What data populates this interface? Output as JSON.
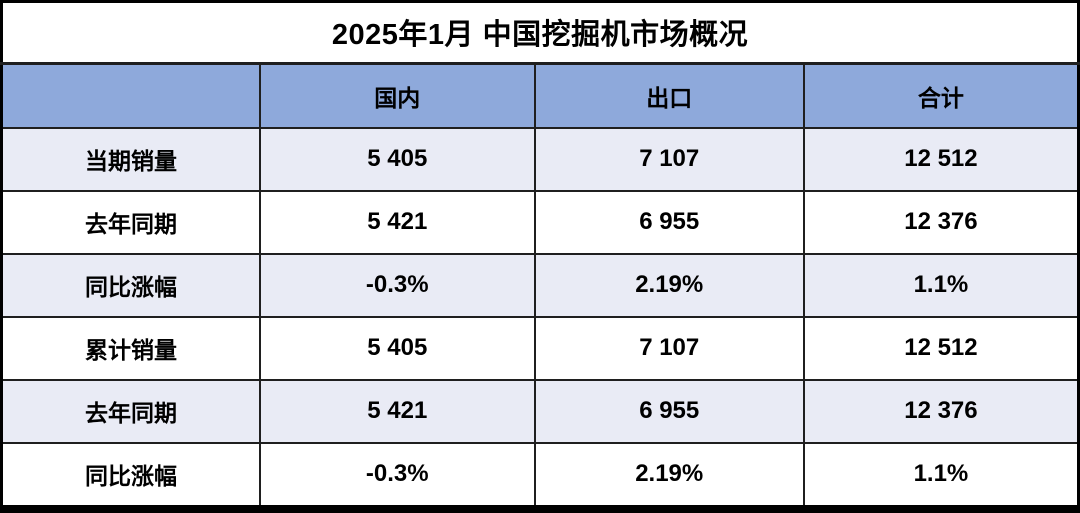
{
  "title": "2025年1月 中国挖掘机市场概况",
  "colors": {
    "header_bg": "#8EA9DB",
    "band_bg": "#E9EBF5",
    "plain_bg": "#FFFFFF",
    "border": "#1F1F1F",
    "text": "#000000"
  },
  "table": {
    "columns": [
      "",
      "国内",
      "出口",
      "合计"
    ],
    "rows": [
      {
        "label": "当期销量",
        "values": [
          "5 405",
          "7 107",
          "12 512"
        ]
      },
      {
        "label": "去年同期",
        "values": [
          "5 421",
          "6 955",
          "12 376"
        ]
      },
      {
        "label": "同比涨幅",
        "values": [
          "-0.3%",
          "2.19%",
          "1.1%"
        ]
      },
      {
        "label": "累计销量",
        "values": [
          "5 405",
          "7 107",
          "12 512"
        ]
      },
      {
        "label": "去年同期",
        "values": [
          "5 421",
          "6 955",
          "12 376"
        ]
      },
      {
        "label": "同比涨幅",
        "values": [
          "-0.3%",
          "2.19%",
          "1.1%"
        ]
      }
    ]
  },
  "chart_data": {
    "type": "table",
    "title": "2025年1月 中国挖掘机市场概况",
    "columns": [
      "",
      "国内",
      "出口",
      "合计"
    ],
    "rows": [
      [
        "当期销量",
        "5 405",
        "7 107",
        "12 512"
      ],
      [
        "去年同期",
        "5 421",
        "6 955",
        "12 376"
      ],
      [
        "同比涨幅",
        "-0.3%",
        "2.19%",
        "1.1%"
      ],
      [
        "累计销量",
        "5 405",
        "7 107",
        "12 512"
      ],
      [
        "去年同期",
        "5 421",
        "6 955",
        "12 376"
      ],
      [
        "同比涨幅",
        "-0.3%",
        "2.19%",
        "1.1%"
      ]
    ],
    "notes": {
      "domestic_current": 5405,
      "export_current": 7107,
      "total_current": 12512,
      "domestic_last_year": 5421,
      "export_last_year": 6955,
      "total_last_year": 12376,
      "domestic_yoy_pct": -0.3,
      "export_yoy_pct": 2.19,
      "total_yoy_pct": 1.1
    }
  }
}
